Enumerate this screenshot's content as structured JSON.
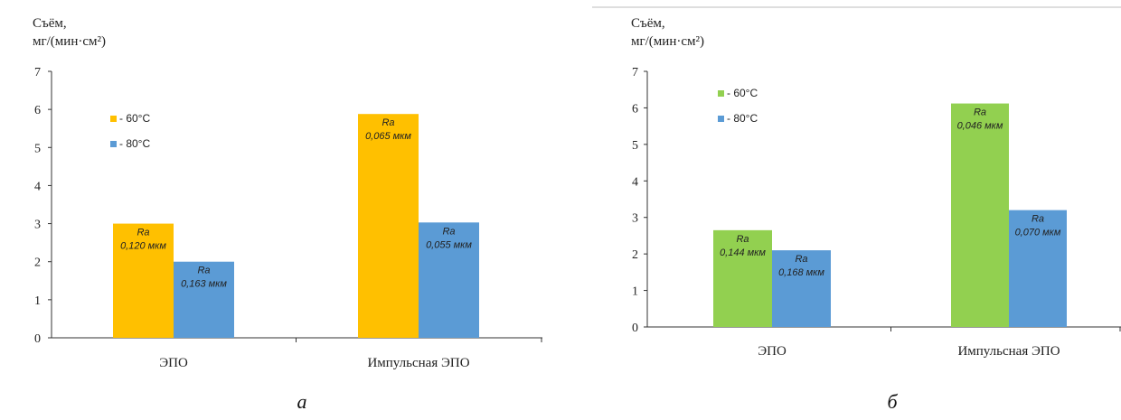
{
  "chart_data": [
    {
      "type": "bar",
      "panel_label": "а",
      "ylabel_line1": "Съём,",
      "ylabel_line2": "мг/(мин·см²)",
      "categories": [
        "ЭПО",
        "Импульсная ЭПО"
      ],
      "ylim": [
        0,
        7
      ],
      "yticks": [
        "0",
        "1",
        "2",
        "3",
        "4",
        "5",
        "6",
        "7"
      ],
      "legend_position": "top-left",
      "grid": false,
      "series": [
        {
          "name": "- 60°С",
          "color": "#FFC000",
          "values": [
            3.0,
            5.88
          ],
          "labels": [
            [
              "Ra",
              "0,120 мкм"
            ],
            [
              "Ra",
              "0,065 мкм"
            ]
          ]
        },
        {
          "name": "- 80°С",
          "color": "#5B9BD5",
          "values": [
            2.0,
            3.03
          ],
          "labels": [
            [
              "Ra",
              "0,163 мкм"
            ],
            [
              "Ra",
              "0,055 мкм"
            ]
          ]
        }
      ]
    },
    {
      "type": "bar",
      "panel_label": "б",
      "ylabel_line1": "Съём,",
      "ylabel_line2": "мг/(мин·см²)",
      "categories": [
        "ЭПО",
        "Импульсная ЭПО"
      ],
      "ylim": [
        0,
        7
      ],
      "yticks": [
        "0",
        "1",
        "2",
        "3",
        "4",
        "5",
        "6",
        "7"
      ],
      "legend_position": "top-left",
      "grid": false,
      "series": [
        {
          "name": "- 60°С",
          "color": "#92D050",
          "values": [
            2.65,
            6.12
          ],
          "labels": [
            [
              "Ra",
              "0,144 мкм"
            ],
            [
              "Ra",
              "0,046 мкм"
            ]
          ]
        },
        {
          "name": "- 80°С",
          "color": "#5B9BD5",
          "values": [
            2.1,
            3.2
          ],
          "labels": [
            [
              "Ra",
              "0,168 мкм"
            ],
            [
              "Ra",
              "0,070 мкм"
            ]
          ]
        }
      ]
    }
  ]
}
